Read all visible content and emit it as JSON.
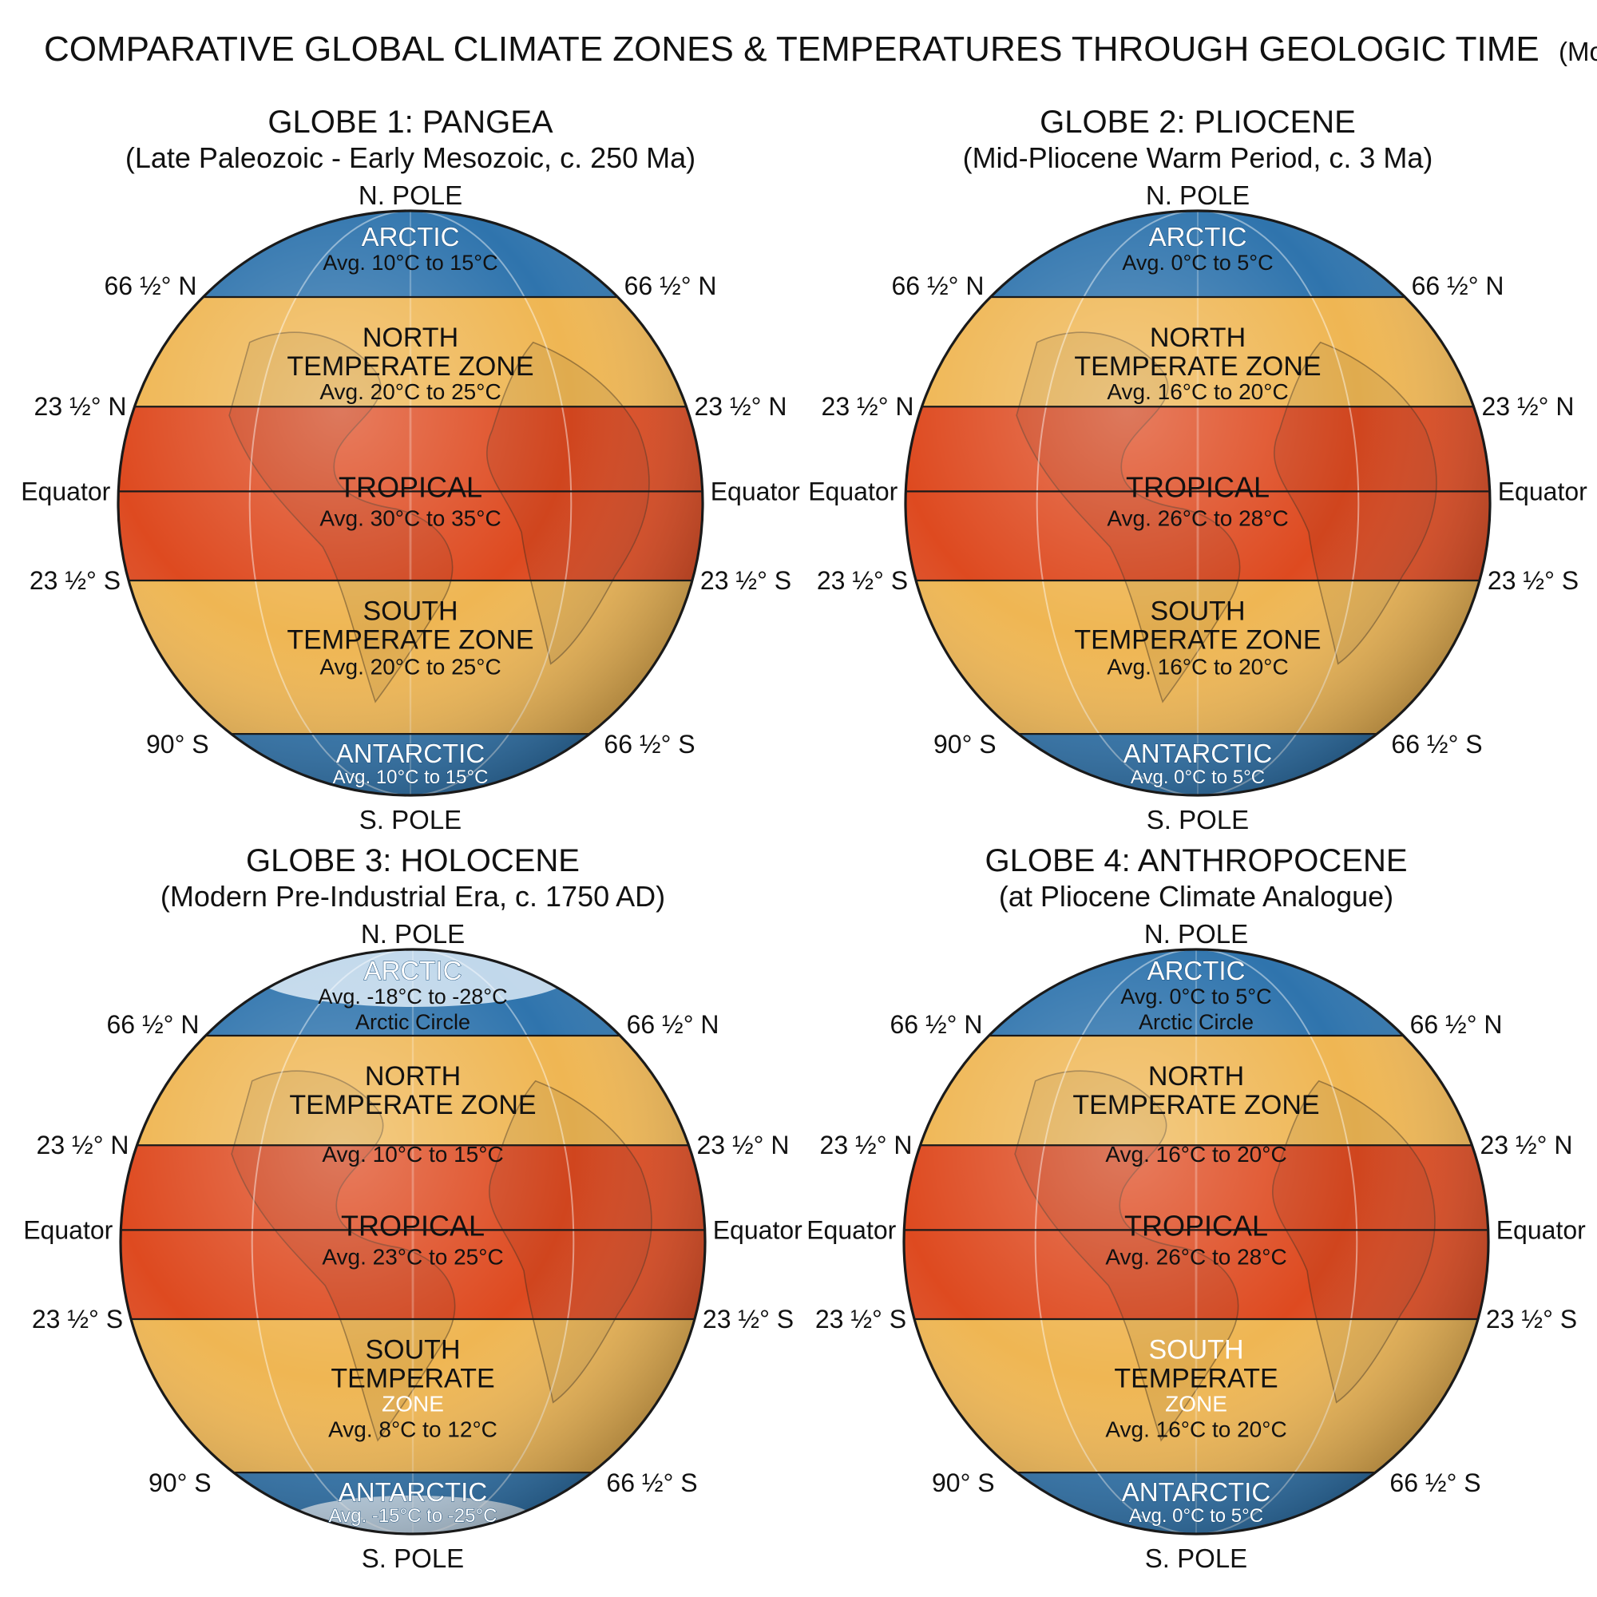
{
  "title": {
    "main": "COMPARATIVE GLOBAL CLIMATE ZONES & TEMPERATURES THROUGH GEOLOGIC TIME",
    "note": "(Model Estimates)"
  },
  "lat_labels": {
    "north_pole": "N. POLE",
    "south_pole": "S. POLE",
    "arctic_circle": "66 ½° N",
    "tropic_cancer": "23 ½° N",
    "equator": "Equator",
    "tropic_capricorn": "23 ½° S",
    "antarctic_circle": "66 ½° S",
    "south_90": "90° S"
  },
  "colors": {
    "polar": "#2f74ad",
    "polar_ice": "#dbeaf6",
    "temperate": "#efb653",
    "tropical": "#de4a20",
    "outline": "#1a1a1a"
  },
  "globes": [
    {
      "title": "GLOBE 1: PANGEA",
      "subtitle": "(Late Paleozoic - Early Mesozoic, c. 250 Ma)",
      "ice": false,
      "zones": {
        "arctic": {
          "name": "ARCTIC",
          "temp": "Avg. 10°C to 15°C",
          "extra": ""
        },
        "north": {
          "name_1": "NORTH",
          "name_2": "TEMPERATE ZONE",
          "temp": "Avg. 20°C to 25°C"
        },
        "tropical": {
          "name": "TROPICAL",
          "temp": "Avg. 30°C to 35°C"
        },
        "south": {
          "name_1": "SOUTH",
          "name_2": "TEMPERATE ZONE",
          "name_3": "",
          "temp": "Avg. 20°C to 25°C"
        },
        "antarctic": {
          "name": "ANTARCTIC",
          "temp": "Avg. 10°C to 15°C"
        }
      }
    },
    {
      "title": "GLOBE 2: PLIOCENE",
      "subtitle": "(Mid-Pliocene Warm Period, c. 3 Ma)",
      "ice": false,
      "zones": {
        "arctic": {
          "name": "ARCTIC",
          "temp": "Avg. 0°C to 5°C",
          "extra": ""
        },
        "north": {
          "name_1": "NORTH",
          "name_2": "TEMPERATE ZONE",
          "temp": "Avg. 16°C to 20°C"
        },
        "tropical": {
          "name": "TROPICAL",
          "temp": "Avg. 26°C to 28°C"
        },
        "south": {
          "name_1": "SOUTH",
          "name_2": "TEMPERATE ZONE",
          "name_3": "",
          "temp": "Avg. 16°C to 20°C"
        },
        "antarctic": {
          "name": "ANTARCTIC",
          "temp": "Avg. 0°C to 5°C"
        }
      }
    },
    {
      "title": "GLOBE 3: HOLOCENE",
      "subtitle": "(Modern Pre-Industrial Era, c. 1750 AD)",
      "ice": true,
      "zones": {
        "arctic": {
          "name": "ARCTIC",
          "temp": "Avg. -18°C to -28°C",
          "extra": "Arctic Circle"
        },
        "north": {
          "name_1": "NORTH",
          "name_2": "TEMPERATE ZONE",
          "temp": "Avg. 10°C to 15°C"
        },
        "tropical": {
          "name": "TROPICAL",
          "temp": "Avg. 23°C to 25°C"
        },
        "south": {
          "name_1": "SOUTH",
          "name_2": "TEMPERATE",
          "name_3": "ZONE",
          "temp": "Avg. 8°C to 12°C"
        },
        "antarctic": {
          "name": "ANTARCTIC",
          "temp": "Avg. -15°C to -25°C"
        }
      }
    },
    {
      "title": "GLOBE 4: ANTHROPOCENE",
      "subtitle": "(at Pliocene Climate Analogue)",
      "ice": false,
      "zones": {
        "arctic": {
          "name": "ARCTIC",
          "temp": "Avg. 0°C to 5°C",
          "extra": "Arctic Circle"
        },
        "north": {
          "name_1": "NORTH",
          "name_2": "TEMPERATE ZONE",
          "temp": "Avg. 16°C to 20°C"
        },
        "tropical": {
          "name": "TROPICAL",
          "temp": "Avg. 26°C to 28°C"
        },
        "south": {
          "name_1": "SOUTH",
          "name_2": "TEMPERATE",
          "name_3": "ZONE",
          "temp": "Avg. 16°C to 20°C"
        },
        "antarctic": {
          "name": "ANTARCTIC",
          "temp": "Avg. 0°C to 5°C"
        }
      }
    }
  ]
}
